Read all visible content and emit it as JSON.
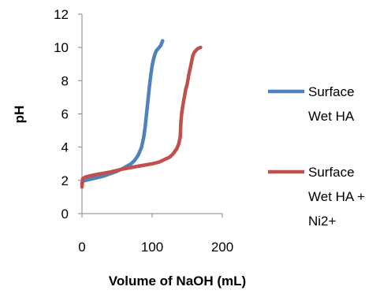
{
  "chart_data": {
    "type": "line",
    "title": "",
    "xlabel": "Volume of NaOH (mL)",
    "ylabel": "pH",
    "xlim": [
      0,
      200
    ],
    "ylim": [
      0,
      12
    ],
    "x_ticks": [
      0,
      100,
      200
    ],
    "y_ticks": [
      0,
      2,
      4,
      6,
      8,
      10,
      12
    ],
    "grid": false,
    "legend_position": "right",
    "series": [
      {
        "name": "Surface Wet HA",
        "legend_lines": [
          "Surface",
          "Wet HA"
        ],
        "color": "#4F81BD",
        "x": [
          0,
          1,
          5,
          10,
          20,
          30,
          40,
          50,
          60,
          70,
          75,
          80,
          85,
          88,
          90,
          92,
          94,
          96,
          98,
          100,
          102,
          104,
          106,
          108,
          110,
          112,
          114,
          115
        ],
        "y": [
          1.8,
          1.95,
          2.0,
          2.05,
          2.15,
          2.25,
          2.4,
          2.55,
          2.75,
          3.0,
          3.2,
          3.5,
          4.0,
          4.6,
          5.2,
          6.0,
          6.8,
          7.6,
          8.3,
          8.9,
          9.3,
          9.6,
          9.8,
          9.9,
          10.0,
          10.1,
          10.3,
          10.4
        ]
      },
      {
        "name": "Surface Wet HA + Ni2+",
        "legend_lines": [
          "Surface",
          "Wet HA +",
          "Ni2+"
        ],
        "color": "#C0504D",
        "x": [
          0,
          1,
          5,
          20,
          40,
          60,
          80,
          100,
          110,
          120,
          125,
          130,
          135,
          138,
          140,
          141,
          142,
          143,
          145,
          148,
          150,
          152,
          155,
          158,
          160,
          163,
          166,
          169
        ],
        "y": [
          1.6,
          2.1,
          2.2,
          2.35,
          2.5,
          2.7,
          2.85,
          3.0,
          3.1,
          3.3,
          3.4,
          3.6,
          3.9,
          4.2,
          4.6,
          5.5,
          6.0,
          6.3,
          6.8,
          7.5,
          7.8,
          8.3,
          8.9,
          9.5,
          9.7,
          9.85,
          9.95,
          10.0
        ]
      }
    ]
  }
}
